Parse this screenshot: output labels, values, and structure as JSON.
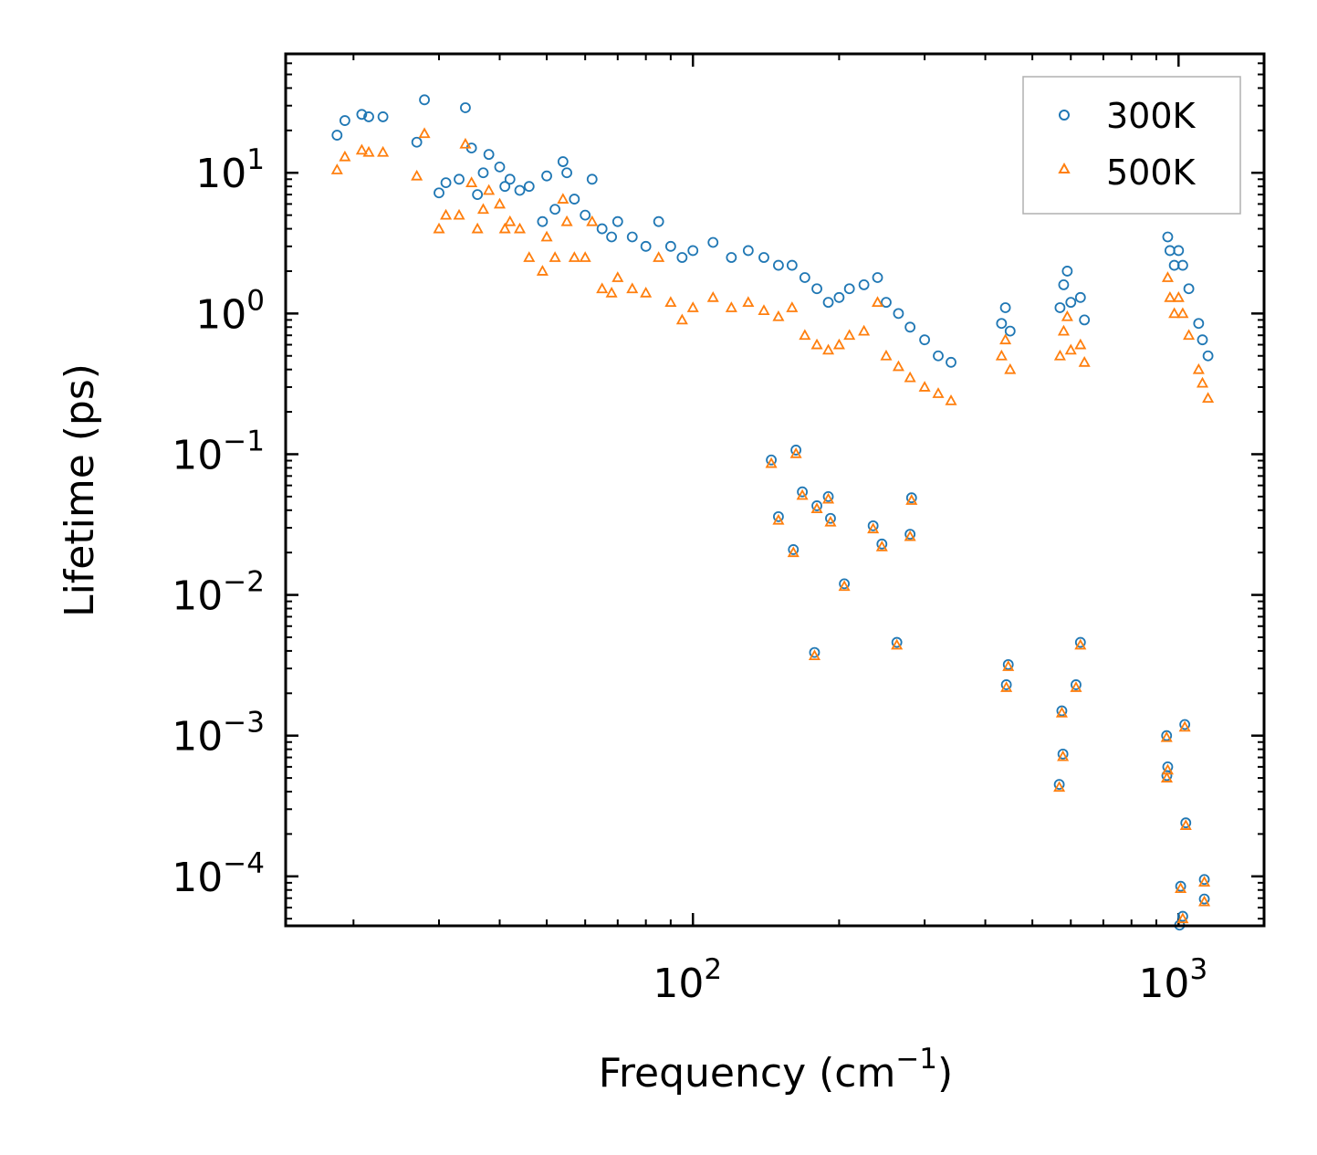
{
  "chart_data": {
    "type": "scatter",
    "title": "",
    "xlabel": {
      "base": "Frequency (cm",
      "sup": "−1",
      "close": ")"
    },
    "ylabel": "Lifetime (ps)",
    "xscale": "log",
    "yscale": "log",
    "xlim": [
      14.5,
      1500
    ],
    "ylim": [
      4.45e-05,
      70
    ],
    "xticks": [
      {
        "value": 100,
        "base": "10",
        "exp": "2"
      },
      {
        "value": 1000,
        "base": "10",
        "exp": "3"
      }
    ],
    "yticks": [
      {
        "value": 10,
        "base": "10",
        "exp": "1"
      },
      {
        "value": 1,
        "base": "10",
        "exp": "0"
      },
      {
        "value": 0.1,
        "base": "10",
        "exp": "−1"
      },
      {
        "value": 0.01,
        "base": "10",
        "exp": "−2"
      },
      {
        "value": 0.001,
        "base": "10",
        "exp": "−3"
      },
      {
        "value": 0.0001,
        "base": "10",
        "exp": "−4"
      }
    ],
    "legend": {
      "position": "top-right"
    },
    "series": [
      {
        "name": "300K",
        "marker": "circle",
        "color": "#1f77b4",
        "points": [
          [
            18.5,
            18.5
          ],
          [
            19.2,
            23.5
          ],
          [
            20.8,
            26
          ],
          [
            21.5,
            25
          ],
          [
            23,
            25
          ],
          [
            27,
            16.5
          ],
          [
            28,
            33
          ],
          [
            30,
            7.2
          ],
          [
            31,
            8.5
          ],
          [
            33,
            9
          ],
          [
            34,
            29
          ],
          [
            35,
            15
          ],
          [
            36,
            7
          ],
          [
            37,
            10
          ],
          [
            38,
            13.5
          ],
          [
            40,
            11
          ],
          [
            41,
            8
          ],
          [
            42,
            9
          ],
          [
            44,
            7.5
          ],
          [
            46,
            8
          ],
          [
            49,
            4.5
          ],
          [
            50,
            9.5
          ],
          [
            52,
            5.5
          ],
          [
            54,
            12
          ],
          [
            55,
            10
          ],
          [
            57,
            6.5
          ],
          [
            60,
            5
          ],
          [
            62,
            9
          ],
          [
            65,
            4
          ],
          [
            68,
            3.5
          ],
          [
            70,
            4.5
          ],
          [
            75,
            3.5
          ],
          [
            80,
            3
          ],
          [
            85,
            4.5
          ],
          [
            90,
            3
          ],
          [
            95,
            2.5
          ],
          [
            100,
            2.8
          ],
          [
            110,
            3.2
          ],
          [
            120,
            2.5
          ],
          [
            130,
            2.8
          ],
          [
            140,
            2.5
          ],
          [
            150,
            2.2
          ],
          [
            160,
            2.2
          ],
          [
            170,
            1.8
          ],
          [
            180,
            1.5
          ],
          [
            190,
            1.2
          ],
          [
            200,
            1.3
          ],
          [
            210,
            1.5
          ],
          [
            225,
            1.6
          ],
          [
            240,
            1.8
          ],
          [
            250,
            1.2
          ],
          [
            265,
            1
          ],
          [
            280,
            0.8
          ],
          [
            300,
            0.65
          ],
          [
            320,
            0.5
          ],
          [
            340,
            0.45
          ],
          [
            432,
            0.85
          ],
          [
            440,
            1.1
          ],
          [
            450,
            0.75
          ],
          [
            570,
            1.1
          ],
          [
            580,
            1.6
          ],
          [
            590,
            2
          ],
          [
            600,
            1.2
          ],
          [
            628,
            1.3
          ],
          [
            640,
            0.9
          ],
          [
            950,
            3.5
          ],
          [
            960,
            2.8
          ],
          [
            980,
            2.2
          ],
          [
            1000,
            2.8
          ],
          [
            1020,
            2.2
          ],
          [
            1050,
            1.5
          ],
          [
            1100,
            0.85
          ],
          [
            1120,
            0.65
          ],
          [
            1150,
            0.5
          ],
          [
            145,
            0.091
          ],
          [
            163,
            0.107
          ],
          [
            168,
            0.054
          ],
          [
            180,
            0.043
          ],
          [
            190,
            0.05
          ],
          [
            192,
            0.035
          ],
          [
            205,
            0.012
          ],
          [
            235,
            0.031
          ],
          [
            245,
            0.023
          ],
          [
            280,
            0.027
          ],
          [
            282,
            0.049
          ],
          [
            150,
            0.036
          ],
          [
            161,
            0.021
          ],
          [
            178,
            0.0039
          ],
          [
            263,
            0.0046
          ],
          [
            446,
            0.0032
          ],
          [
            442,
            0.0023
          ],
          [
            575,
            0.0015
          ],
          [
            578,
            0.00074
          ],
          [
            568,
            0.00045
          ],
          [
            628,
            0.0046
          ],
          [
            615,
            0.0023
          ],
          [
            945,
            0.001
          ],
          [
            950,
            0.0006
          ],
          [
            946,
            0.00052
          ],
          [
            1030,
            0.0012
          ],
          [
            1035,
            0.00024
          ],
          [
            1010,
            8.5e-05
          ],
          [
            1020,
            5.2e-05
          ],
          [
            1005,
            4.5e-05
          ],
          [
            1130,
            9.5e-05
          ],
          [
            1130,
            6.9e-05
          ]
        ]
      },
      {
        "name": "500K",
        "marker": "triangle",
        "color": "#ff7f0e",
        "points": [
          [
            18.5,
            10.5
          ],
          [
            19.2,
            13
          ],
          [
            20.8,
            14.5
          ],
          [
            21.5,
            14
          ],
          [
            23,
            14
          ],
          [
            27,
            9.5
          ],
          [
            28,
            19
          ],
          [
            30,
            4
          ],
          [
            31,
            5
          ],
          [
            33,
            5
          ],
          [
            34,
            16
          ],
          [
            35,
            8.5
          ],
          [
            36,
            4
          ],
          [
            37,
            5.5
          ],
          [
            38,
            7.5
          ],
          [
            40,
            6
          ],
          [
            41,
            4
          ],
          [
            42,
            4.5
          ],
          [
            44,
            4
          ],
          [
            46,
            2.5
          ],
          [
            49,
            2
          ],
          [
            50,
            3.5
          ],
          [
            52,
            2.5
          ],
          [
            54,
            6.5
          ],
          [
            55,
            4.5
          ],
          [
            57,
            2.5
          ],
          [
            60,
            2.5
          ],
          [
            62,
            4.5
          ],
          [
            65,
            1.5
          ],
          [
            68,
            1.4
          ],
          [
            70,
            1.8
          ],
          [
            75,
            1.5
          ],
          [
            80,
            1.4
          ],
          [
            85,
            2.5
          ],
          [
            90,
            1.2
          ],
          [
            95,
            0.9
          ],
          [
            100,
            1.1
          ],
          [
            110,
            1.3
          ],
          [
            120,
            1.1
          ],
          [
            130,
            1.2
          ],
          [
            140,
            1.05
          ],
          [
            150,
            0.95
          ],
          [
            160,
            1.1
          ],
          [
            170,
            0.7
          ],
          [
            180,
            0.6
          ],
          [
            190,
            0.55
          ],
          [
            200,
            0.6
          ],
          [
            210,
            0.7
          ],
          [
            225,
            0.75
          ],
          [
            240,
            1.2
          ],
          [
            250,
            0.5
          ],
          [
            265,
            0.42
          ],
          [
            280,
            0.35
          ],
          [
            300,
            0.3
          ],
          [
            320,
            0.27
          ],
          [
            340,
            0.24
          ],
          [
            432,
            0.5
          ],
          [
            440,
            0.65
          ],
          [
            450,
            0.4
          ],
          [
            570,
            0.5
          ],
          [
            580,
            0.75
          ],
          [
            590,
            0.95
          ],
          [
            600,
            0.55
          ],
          [
            628,
            0.6
          ],
          [
            640,
            0.45
          ],
          [
            950,
            1.8
          ],
          [
            960,
            1.3
          ],
          [
            980,
            1
          ],
          [
            1000,
            1.3
          ],
          [
            1020,
            1
          ],
          [
            1050,
            0.7
          ],
          [
            1100,
            0.4
          ],
          [
            1120,
            0.32
          ],
          [
            1150,
            0.25
          ],
          [
            145,
            0.086
          ],
          [
            163,
            0.101
          ],
          [
            168,
            0.051
          ],
          [
            180,
            0.041
          ],
          [
            190,
            0.048
          ],
          [
            192,
            0.033
          ],
          [
            205,
            0.0115
          ],
          [
            235,
            0.0295
          ],
          [
            245,
            0.022
          ],
          [
            280,
            0.026
          ],
          [
            282,
            0.047
          ],
          [
            150,
            0.034
          ],
          [
            161,
            0.02
          ],
          [
            178,
            0.0037
          ],
          [
            263,
            0.0044
          ],
          [
            446,
            0.0031
          ],
          [
            442,
            0.0022
          ],
          [
            575,
            0.00145
          ],
          [
            578,
            0.00071
          ],
          [
            568,
            0.00043
          ],
          [
            628,
            0.0044
          ],
          [
            615,
            0.0022
          ],
          [
            945,
            0.00097
          ],
          [
            950,
            0.00057
          ],
          [
            946,
            0.0005
          ],
          [
            1030,
            0.00115
          ],
          [
            1035,
            0.00023
          ],
          [
            1010,
            8.2e-05
          ],
          [
            1020,
            5e-05
          ],
          [
            1005,
            4.3e-05
          ],
          [
            1130,
            9.1e-05
          ],
          [
            1130,
            6.6e-05
          ]
        ]
      }
    ]
  }
}
